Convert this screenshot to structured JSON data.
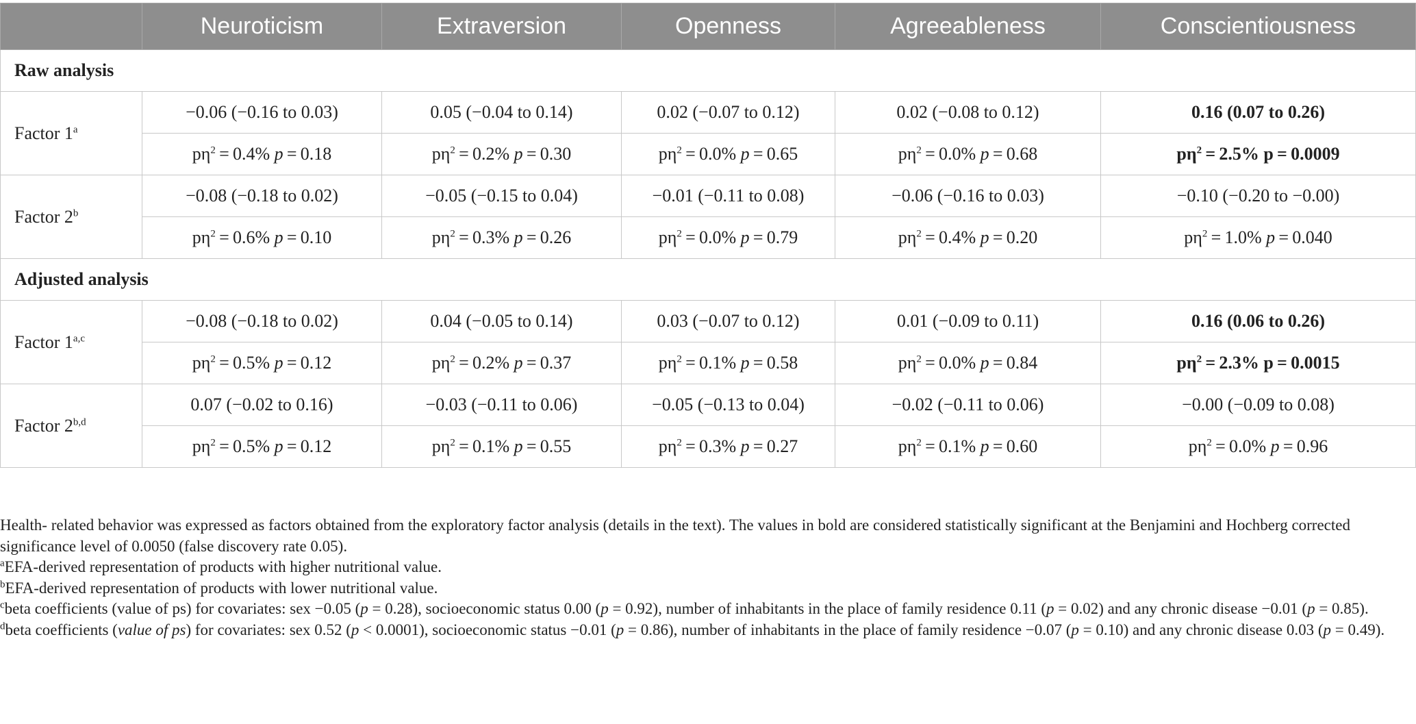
{
  "headers": [
    "",
    "Neuroticism",
    "Extraversion",
    "Openness",
    "Agreeableness",
    "Conscientiousness"
  ],
  "sections": [
    {
      "title": "Raw analysis",
      "factors": [
        {
          "label": "Factor 1",
          "sup": "a",
          "coef": [
            "−0.06 (−0.16 to 0.03)",
            "0.05 (−0.04 to 0.14)",
            "0.02 (−0.07 to 0.12)",
            "0.02 (−0.08 to 0.12)",
            "0.16 (0.07 to 0.26)"
          ],
          "eta": [
            "0.4%",
            "0.2%",
            "0.0%",
            "0.0%",
            "2.5%"
          ],
          "p": [
            "0.18",
            "0.30",
            "0.65",
            "0.68",
            "0.0009"
          ],
          "bold": [
            false,
            false,
            false,
            false,
            true
          ]
        },
        {
          "label": "Factor 2",
          "sup": "b",
          "coef": [
            "−0.08 (−0.18 to 0.02)",
            "−0.05 (−0.15 to 0.04)",
            "−0.01 (−0.11 to 0.08)",
            "−0.06 (−0.16 to 0.03)",
            "−0.10 (−0.20 to −0.00)"
          ],
          "eta": [
            "0.6%",
            "0.3%",
            "0.0%",
            "0.4%",
            "1.0%"
          ],
          "p": [
            "0.10",
            "0.26",
            "0.79",
            "0.20",
            "0.040"
          ],
          "bold": [
            false,
            false,
            false,
            false,
            false
          ]
        }
      ]
    },
    {
      "title": "Adjusted analysis",
      "factors": [
        {
          "label": "Factor 1",
          "sup": "a,c",
          "coef": [
            "−0.08 (−0.18 to 0.02)",
            "0.04 (−0.05 to 0.14)",
            "0.03 (−0.07 to 0.12)",
            "0.01 (−0.09 to 0.11)",
            "0.16 (0.06 to 0.26)"
          ],
          "eta": [
            "0.5%",
            "0.2%",
            "0.1%",
            "0.0%",
            "2.3%"
          ],
          "p": [
            "0.12",
            "0.37",
            "0.58",
            "0.84",
            "0.0015"
          ],
          "bold": [
            false,
            false,
            false,
            false,
            true
          ]
        },
        {
          "label": "Factor 2",
          "sup": "b,d",
          "coef": [
            "0.07 (−0.02 to 0.16)",
            "−0.03 (−0.11 to 0.06)",
            "−0.05 (−0.13 to 0.04)",
            "−0.02 (−0.11 to 0.06)",
            "−0.00 (−0.09 to 0.08)"
          ],
          "eta": [
            "0.5%",
            "0.1%",
            "0.3%",
            "0.1%",
            "0.0%"
          ],
          "p": [
            "0.12",
            "0.55",
            "0.27",
            "0.60",
            "0.96"
          ],
          "bold": [
            false,
            false,
            false,
            false,
            false
          ]
        }
      ]
    }
  ],
  "notes": {
    "main": "Health- related behavior was expressed as factors obtained from the exploratory factor analysis (details in the text). The values in bold are considered statistically significant at the Benjamini and Hochberg corrected significance level of 0.0050 (false discovery rate 0.05).",
    "a": "EFA-derived representation of products with higher nutritional value.",
    "b": "EFA-derived representation of products with lower nutritional value.",
    "c_parts": [
      "beta coefficients (value of ps) for covariates: sex −0.05 (",
      "p",
      " = 0.28), socioeconomic status 0.00 (",
      "p",
      " = 0.92), number of inhabitants in the place of family residence 0.11 (",
      "p",
      " = 0.02) and any chronic disease −0.01 (",
      "p",
      " = 0.85)."
    ],
    "d_parts": [
      "beta coefficients (",
      "value of ps",
      ") for covariates: sex 0.52 (",
      "p",
      " < 0.0001), socioeconomic status −0.01 (",
      "p",
      " = 0.86), number of inhabitants in the place of family residence −0.07 (",
      "p",
      " = 0.10) and any chronic disease 0.03 (",
      "p",
      " = 0.49)."
    ]
  }
}
